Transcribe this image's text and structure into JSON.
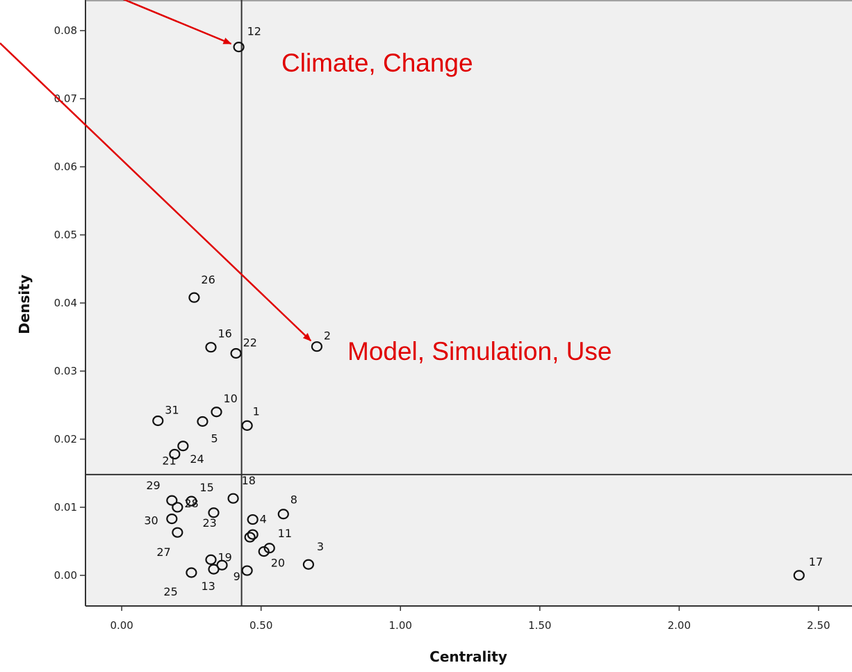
{
  "chart_data": {
    "type": "scatter",
    "xlabel": "Centrality",
    "ylabel": "Density",
    "xlim": [
      -0.13,
      2.62
    ],
    "ylim": [
      -0.0045,
      0.0845
    ],
    "xticks": [
      {
        "value": 0.0,
        "label": "0.00"
      },
      {
        "value": 0.5,
        "label": "0.50"
      },
      {
        "value": 1.0,
        "label": "1.00"
      },
      {
        "value": 1.5,
        "label": "1.50"
      },
      {
        "value": 2.0,
        "label": "2.00"
      },
      {
        "value": 2.5,
        "label": "2.50"
      }
    ],
    "yticks": [
      {
        "value": 0.0,
        "label": "0.00"
      },
      {
        "value": 0.01,
        "label": "0.01"
      },
      {
        "value": 0.02,
        "label": "0.02"
      },
      {
        "value": 0.03,
        "label": "0.03"
      },
      {
        "value": 0.04,
        "label": "0.04"
      },
      {
        "value": 0.05,
        "label": "0.05"
      },
      {
        "value": 0.06,
        "label": "0.06"
      },
      {
        "value": 0.07,
        "label": "0.07"
      },
      {
        "value": 0.08,
        "label": "0.08"
      }
    ],
    "reference_lines": {
      "x": 0.43,
      "y": 0.0148
    },
    "grid": false,
    "points": [
      {
        "label": "1",
        "x": 0.45,
        "y": 0.022
      },
      {
        "label": "2",
        "x": 0.7,
        "y": 0.0336
      },
      {
        "label": "3",
        "x": 0.67,
        "y": 0.0016
      },
      {
        "label": "4",
        "x": 0.47,
        "y": 0.0082
      },
      {
        "label": "5",
        "x": 0.29,
        "y": 0.0226
      },
      {
        "label": "8",
        "x": 0.58,
        "y": 0.009
      },
      {
        "label": "9",
        "x": 0.45,
        "y": 0.0007
      },
      {
        "label": "10",
        "x": 0.34,
        "y": 0.024
      },
      {
        "label": "11",
        "x": 0.47,
        "y": 0.006
      },
      {
        "label": "12",
        "x": 0.42,
        "y": 0.0776
      },
      {
        "label": "13",
        "x": 0.33,
        "y": 0.0009
      },
      {
        "label": "15",
        "x": 0.25,
        "y": 0.0109
      },
      {
        "label": "16",
        "x": 0.32,
        "y": 0.0335
      },
      {
        "label": "17",
        "x": 2.43,
        "y": 0.0
      },
      {
        "label": "18",
        "x": 0.4,
        "y": 0.0113
      },
      {
        "label": "19",
        "x": 0.32,
        "y": 0.0023
      },
      {
        "label": "20",
        "x": 0.51,
        "y": 0.0035
      },
      {
        "label": "21",
        "x": 0.19,
        "y": 0.0178
      },
      {
        "label": "22",
        "x": 0.41,
        "y": 0.0326
      },
      {
        "label": "23",
        "x": 0.33,
        "y": 0.0092
      },
      {
        "label": "24",
        "x": 0.22,
        "y": 0.019
      },
      {
        "label": "25",
        "x": 0.25,
        "y": 0.0004
      },
      {
        "label": "26",
        "x": 0.26,
        "y": 0.0408
      },
      {
        "label": "27",
        "x": 0.2,
        "y": 0.0063
      },
      {
        "label": "28",
        "x": 0.2,
        "y": 0.01
      },
      {
        "label": "29",
        "x": 0.18,
        "y": 0.011
      },
      {
        "label": "30",
        "x": 0.18,
        "y": 0.0083
      },
      {
        "label": "31",
        "x": 0.13,
        "y": 0.0227
      },
      {
        "label": "",
        "x": 0.36,
        "y": 0.0015
      },
      {
        "label": "",
        "x": 0.46,
        "y": 0.0056
      },
      {
        "label": "",
        "x": 0.53,
        "y": 0.004
      }
    ],
    "annotations": [
      {
        "text": "Climate, Change",
        "color": "#e00000",
        "target_point": "12"
      },
      {
        "text": "Model, Simulation, Use",
        "color": "#e00000",
        "target_point": "2"
      }
    ],
    "colors": {
      "plot_background": "#f0f0f0",
      "marker": "#111111",
      "reference_line": "#333333",
      "annotation": "#e00000"
    }
  }
}
